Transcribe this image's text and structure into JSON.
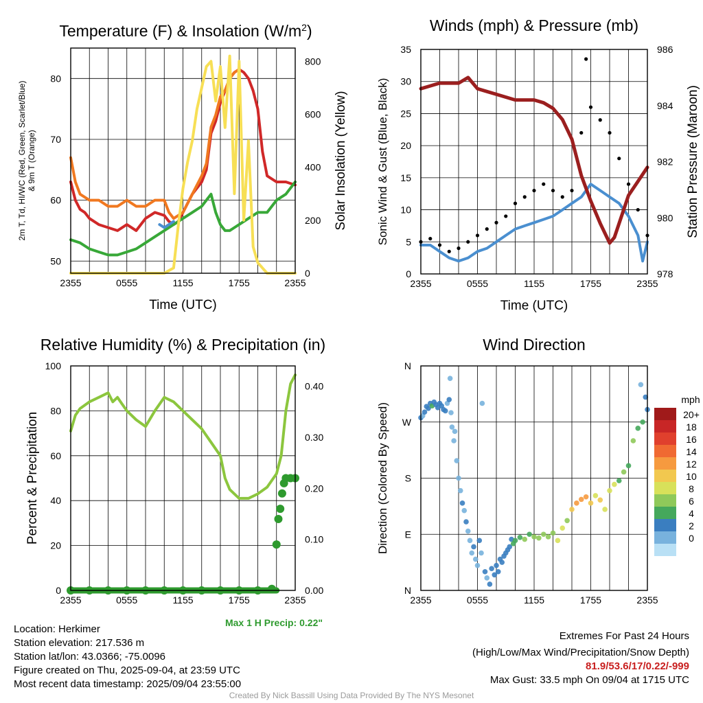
{
  "chart_data": [
    {
      "id": "temp",
      "type": "line",
      "title": "Temperature (F) & Insolation (W/m²)",
      "xlabel": "Time (UTC)",
      "ylabel_left": "2m T, Td, HI/WC (Red, Green, Scarlet/Blue) & 9m T (Orange)",
      "ylabel_right": "Solar Insolation (Yellow)",
      "x_ticks": [
        "2355",
        "0555",
        "1155",
        "1755",
        "2355"
      ],
      "ylim": [
        48,
        85
      ],
      "y_ticks": [
        50,
        60,
        70,
        80
      ],
      "ylim_right": [
        0,
        850
      ],
      "y_ticks_right": [
        0,
        200,
        400,
        600,
        800
      ],
      "grid": true,
      "series": [
        {
          "color": "#d02828",
          "x": [
            0,
            0.5,
            1,
            1.5,
            2,
            3,
            4,
            5,
            6,
            7,
            8,
            9,
            10,
            10.5,
            11,
            11.5,
            12,
            13,
            14,
            14.5,
            15,
            15.5,
            16,
            16.5,
            17,
            17.5,
            18,
            18.5,
            19,
            19.5,
            20,
            20.5,
            21,
            22,
            23,
            24
          ],
          "y": [
            63,
            60,
            58.5,
            58,
            57,
            56,
            55.5,
            55,
            56,
            55,
            57,
            58,
            57.5,
            56.5,
            56,
            56.5,
            58,
            61,
            63,
            65,
            71,
            73,
            76,
            78,
            80,
            81,
            81.5,
            81,
            80,
            78,
            75,
            68,
            64,
            63,
            63,
            62.5
          ]
        },
        {
          "color": "#f07820",
          "x": [
            0,
            0.5,
            1,
            2,
            3,
            4,
            5,
            6,
            7,
            8,
            9,
            10,
            10.5,
            11,
            12,
            13,
            14,
            14.5,
            15,
            15.5,
            16,
            16.5,
            17,
            17.5,
            18
          ],
          "y": [
            67,
            63,
            61,
            60,
            60,
            59,
            59,
            60,
            59,
            59,
            60,
            60,
            58,
            57,
            58,
            61,
            64,
            66,
            72,
            74,
            77,
            78,
            80,
            81,
            81.5
          ]
        },
        {
          "color": "#38a838",
          "x": [
            0,
            1,
            2,
            3,
            4,
            5,
            6,
            7,
            8,
            9,
            10,
            11,
            12,
            13,
            14,
            14.5,
            15,
            15.5,
            16,
            16.5,
            17,
            17.5,
            18,
            19,
            20,
            21,
            22,
            23,
            24
          ],
          "y": [
            53.5,
            53,
            52,
            51.5,
            51,
            51,
            51.5,
            52,
            53,
            54,
            55,
            56,
            57,
            58,
            59,
            60,
            61,
            58,
            56,
            55,
            55,
            55.5,
            56,
            57,
            58,
            58,
            60,
            61,
            63
          ]
        },
        {
          "color": "#4a8fd0",
          "x": [
            9.5,
            10,
            10.5,
            11
          ],
          "y": [
            56,
            55.5,
            56,
            56.5
          ]
        },
        {
          "color": "#f7df55",
          "axis": "right",
          "x": [
            0,
            1,
            2,
            3,
            4,
            5,
            6,
            7,
            8,
            9,
            10,
            11,
            11.5,
            12,
            12.5,
            13,
            13.5,
            14,
            14.5,
            15,
            15.5,
            16,
            16.5,
            17,
            17.5,
            18,
            18.5,
            19,
            19.5,
            20,
            20.5,
            21,
            22,
            23,
            24
          ],
          "y": [
            0,
            0,
            0,
            0,
            0,
            0,
            0,
            0,
            0,
            0,
            0,
            20,
            180,
            320,
            420,
            500,
            620,
            700,
            780,
            800,
            650,
            780,
            550,
            820,
            300,
            800,
            200,
            500,
            100,
            40,
            20,
            0,
            0,
            0,
            0
          ]
        }
      ]
    },
    {
      "id": "wind",
      "type": "line",
      "title": "Winds (mph) & Pressure (mb)",
      "xlabel": "Time (UTC)",
      "ylabel_left": "Sonic Wind & Gust (Blue, Black)",
      "ylabel_right": "Station Pressure (Maroon)",
      "x_ticks": [
        "2355",
        "0555",
        "1155",
        "1755",
        "2355"
      ],
      "ylim": [
        0,
        35
      ],
      "y_ticks": [
        0,
        5,
        10,
        15,
        20,
        25,
        30,
        35
      ],
      "ylim_right": [
        978,
        986
      ],
      "y_ticks_right": [
        978,
        980,
        982,
        984,
        986
      ],
      "grid": true,
      "series": [
        {
          "color": "#4a8fd0",
          "x": [
            0,
            1,
            2,
            3,
            4,
            5,
            6,
            7,
            8,
            9,
            10,
            11,
            12,
            13,
            14,
            15,
            16,
            17,
            18,
            19,
            20,
            21,
            22,
            23,
            23.5,
            24
          ],
          "y": [
            4.5,
            4.5,
            3.5,
            2.5,
            2,
            2.5,
            3.5,
            4,
            5,
            6,
            7,
            7.5,
            8,
            8.5,
            9,
            10,
            11,
            12,
            14,
            13,
            12,
            11,
            9,
            6,
            2,
            5
          ]
        },
        {
          "color": "#000000",
          "marker": "dot",
          "x": [
            0,
            1,
            2,
            3,
            4,
            5,
            6,
            7,
            8,
            9,
            10,
            11,
            12,
            13,
            14,
            15,
            16,
            17,
            17.5,
            18,
            19,
            20,
            21,
            22,
            23,
            24
          ],
          "y": [
            5,
            5.5,
            4.5,
            3.5,
            4,
            5,
            6,
            7,
            8,
            9,
            11,
            12,
            13,
            14,
            13,
            12,
            13,
            22,
            33.5,
            26,
            24,
            22,
            18,
            14,
            10,
            6
          ]
        },
        {
          "color": "#9b1f1f",
          "axis": "right",
          "x": [
            0,
            1,
            2,
            3,
            4,
            5,
            6,
            7,
            8,
            9,
            10,
            11,
            12,
            13,
            14,
            15,
            16,
            17,
            18,
            19,
            20,
            20.5,
            21,
            22,
            23,
            24
          ],
          "y": [
            984.6,
            984.7,
            984.8,
            984.8,
            984.8,
            985.0,
            984.6,
            984.5,
            984.4,
            984.3,
            984.2,
            984.2,
            984.2,
            984.1,
            983.9,
            983.5,
            982.8,
            981.5,
            980.6,
            979.8,
            979.1,
            979.3,
            979.8,
            980.8,
            981.3,
            981.8
          ]
        }
      ]
    },
    {
      "id": "rh",
      "type": "line",
      "title": "Relative Humidity (%) & Precipitation (in)",
      "ylabel_left": "Percent & Precipitation",
      "x_ticks": [
        "2355",
        "0555",
        "1155",
        "1755",
        "2355"
      ],
      "ylim": [
        0,
        100
      ],
      "y_ticks": [
        0,
        20,
        40,
        60,
        80,
        100
      ],
      "ylim_right": [
        0,
        0.44
      ],
      "y_ticks_right": [
        "0.00",
        "0.10",
        "0.20",
        "0.30",
        "0.40"
      ],
      "grid": true,
      "annotation": "Max 1 H Precip: 0.22\"",
      "series": [
        {
          "color": "#8cc63e",
          "x": [
            0,
            0.5,
            1,
            2,
            3,
            4,
            4.5,
            5,
            5.5,
            6,
            7,
            8,
            9,
            10,
            11,
            12,
            13,
            14,
            15,
            16,
            16.5,
            17,
            17.5,
            18,
            19,
            20,
            21,
            22,
            22.5,
            23,
            23.5,
            24
          ],
          "y": [
            71,
            78,
            81,
            84,
            86,
            88,
            84,
            86,
            83,
            80,
            76,
            73,
            80,
            86,
            84,
            80,
            76,
            72,
            66,
            60,
            50,
            45,
            43,
            41,
            41,
            43,
            46,
            52,
            60,
            80,
            92,
            96
          ]
        },
        {
          "color": "#2e9a2e",
          "axis": "right",
          "marker": "dot",
          "x": [
            0,
            2,
            4,
            6,
            8,
            10,
            12,
            14,
            16,
            18,
            20,
            21.5,
            22,
            22.2,
            22.4,
            22.6,
            22.8,
            23,
            23.5,
            24
          ],
          "y": [
            0,
            0,
            0,
            0,
            0,
            0,
            0,
            0,
            0,
            0,
            0,
            0.003,
            0.09,
            0.14,
            0.16,
            0.19,
            0.21,
            0.22,
            0.22,
            0.22
          ]
        }
      ]
    },
    {
      "id": "dir",
      "type": "scatter",
      "title": "Wind Direction",
      "ylabel_left": "Direction (Colored By Speed)",
      "x_ticks": [
        "2355",
        "0555",
        "1155",
        "1755",
        "2355"
      ],
      "y_ticks": [
        "N",
        "E",
        "S",
        "W",
        "N"
      ],
      "ylim": [
        0,
        360
      ],
      "grid": true,
      "colorbar_title": "mph",
      "colorbar_labels": [
        "20+",
        "18",
        "16",
        "14",
        "12",
        "10",
        "8",
        "6",
        "4",
        "2",
        "0"
      ],
      "colorbar_colors": [
        "#a01a1a",
        "#c82626",
        "#e0402d",
        "#f06a32",
        "#f69a3f",
        "#f2c84f",
        "#d8e15a",
        "#8fc95a",
        "#45a85c",
        "#3a7ec0",
        "#78b2dd",
        "#b9e0f5"
      ],
      "points": [
        [
          0,
          277,
          3
        ],
        [
          0.2,
          280,
          2
        ],
        [
          0.4,
          286,
          4
        ],
        [
          0.6,
          295,
          3
        ],
        [
          0.8,
          292,
          4
        ],
        [
          1,
          300,
          3
        ],
        [
          1.2,
          296,
          5
        ],
        [
          1.4,
          302,
          4
        ],
        [
          1.6,
          298,
          3
        ],
        [
          1.8,
          293,
          4
        ],
        [
          2,
          300,
          3
        ],
        [
          2.2,
          296,
          4
        ],
        [
          2.4,
          290,
          3
        ],
        [
          2.6,
          288,
          4
        ],
        [
          2.8,
          300,
          2
        ],
        [
          3,
          306,
          3
        ],
        [
          3.1,
          340,
          2
        ],
        [
          3.2,
          285,
          2
        ],
        [
          3.3,
          262,
          2
        ],
        [
          3.5,
          240,
          1
        ],
        [
          3.6,
          255,
          2
        ],
        [
          3.8,
          208,
          2
        ],
        [
          4,
          180,
          2
        ],
        [
          4.2,
          160,
          2
        ],
        [
          4.4,
          140,
          3
        ],
        [
          4.6,
          128,
          2
        ],
        [
          4.8,
          110,
          3
        ],
        [
          5,
          95,
          2
        ],
        [
          5.2,
          80,
          1
        ],
        [
          5.4,
          60,
          2
        ],
        [
          5.6,
          70,
          3
        ],
        [
          5.8,
          50,
          2
        ],
        [
          6,
          40,
          2
        ],
        [
          6.2,
          80,
          3
        ],
        [
          6.4,
          60,
          2
        ],
        [
          6.5,
          300,
          2
        ],
        [
          6.8,
          30,
          3
        ],
        [
          7,
          20,
          2
        ],
        [
          7.3,
          10,
          3
        ],
        [
          7.5,
          35,
          4
        ],
        [
          7.8,
          25,
          3
        ],
        [
          8,
          40,
          4
        ],
        [
          8.2,
          30,
          3
        ],
        [
          8.4,
          50,
          4
        ],
        [
          8.6,
          45,
          4
        ],
        [
          8.8,
          55,
          3
        ],
        [
          9,
          60,
          3
        ],
        [
          9.2,
          65,
          4
        ],
        [
          9.4,
          70,
          4
        ],
        [
          9.6,
          82,
          4
        ],
        [
          9.8,
          75,
          5
        ],
        [
          10,
          80,
          6
        ],
        [
          10.5,
          85,
          6
        ],
        [
          11,
          82,
          7
        ],
        [
          11.5,
          90,
          6
        ],
        [
          12,
          86,
          7
        ],
        [
          12.5,
          84,
          8
        ],
        [
          13,
          90,
          8
        ],
        [
          13.5,
          86,
          7
        ],
        [
          14,
          92,
          8
        ],
        [
          14.5,
          80,
          9
        ],
        [
          15,
          100,
          10
        ],
        [
          15.5,
          112,
          8
        ],
        [
          16,
          130,
          12
        ],
        [
          16.5,
          140,
          14
        ],
        [
          17,
          146,
          13
        ],
        [
          17.5,
          150,
          14
        ],
        [
          18,
          140,
          12
        ],
        [
          18.5,
          152,
          10
        ],
        [
          19,
          145,
          11
        ],
        [
          19.5,
          130,
          9
        ],
        [
          20,
          160,
          10
        ],
        [
          20.5,
          170,
          9
        ],
        [
          21,
          176,
          6
        ],
        [
          21.5,
          190,
          8
        ],
        [
          22,
          200,
          5
        ],
        [
          22.5,
          240,
          7
        ],
        [
          23,
          260,
          6
        ],
        [
          23.3,
          330,
          2
        ],
        [
          23.5,
          270,
          5
        ],
        [
          23.8,
          310,
          3
        ],
        [
          24,
          290,
          4
        ]
      ]
    }
  ],
  "info": {
    "location": "Location: Herkimer",
    "elevation": "Station elevation: 217.536 m",
    "latlon": "Station lat/lon: 43.0366; -75.0096",
    "created": "Figure created on Thu, 2025-09-04, at 23:59 UTC",
    "recent": "Most recent data timestamp: 2025/09/04 23:55:00"
  },
  "extremes": {
    "line1": "Extremes For Past 24 Hours",
    "line2": "(High/Low/Max Wind/Precipitation/Snow Depth)",
    "values": "81.9/53.6/17/0.22/-999",
    "gust": "Max Gust: 33.5 mph On 09/04 at 1715 UTC"
  },
  "credit": "Created By Nick Bassill Using Data Provided By The NYS Mesonet"
}
